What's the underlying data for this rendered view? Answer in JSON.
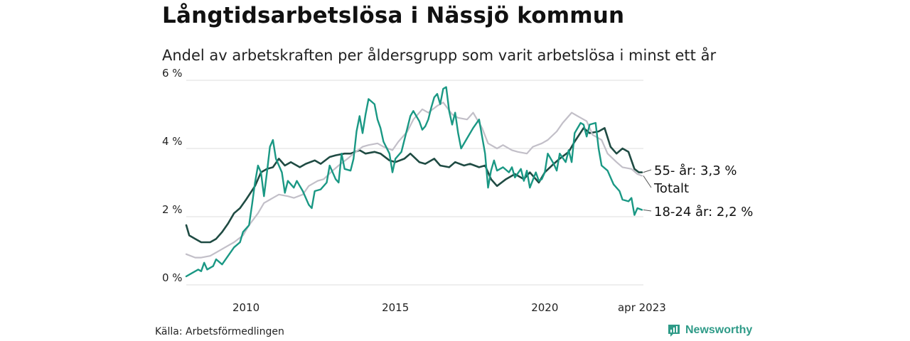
{
  "header": {
    "title": "Långtidsarbetslösa i Nässjö kommun",
    "subtitle": "Andel av arbetskraften per åldersgrupp som varit arbetslösa i minst ett år"
  },
  "footer": {
    "source": "Källa: Arbetsförmedlingen",
    "brand": "Newsworthy"
  },
  "colors": {
    "youth": "#1a9884",
    "senior": "#1f4b43",
    "total": "#c2bfc8",
    "grid": "#dddddd",
    "brand": "#2f9b88"
  },
  "chart_data": {
    "type": "line",
    "ylim": [
      0,
      6
    ],
    "y_ticks": [
      0,
      2,
      4,
      6
    ],
    "y_tick_labels": [
      "0 %",
      "2 %",
      "4 %",
      "6 %"
    ],
    "x_range": [
      2008.0,
      2023.3
    ],
    "x_ticks": [
      2010,
      2015,
      2020,
      2023.25
    ],
    "x_tick_labels": [
      "2010",
      "2015",
      "2020",
      "apr 2023"
    ],
    "grid": true,
    "legend": "direct labels at line ends (right)",
    "series": [
      {
        "name": "55- år",
        "label": "55- år: 3,3 %",
        "color_key": "senior",
        "points": [
          [
            2008.0,
            1.75
          ],
          [
            2008.1,
            1.45
          ],
          [
            2008.3,
            1.35
          ],
          [
            2008.5,
            1.25
          ],
          [
            2008.8,
            1.25
          ],
          [
            2009.0,
            1.35
          ],
          [
            2009.2,
            1.55
          ],
          [
            2009.4,
            1.8
          ],
          [
            2009.6,
            2.1
          ],
          [
            2009.8,
            2.25
          ],
          [
            2010.0,
            2.5
          ],
          [
            2010.3,
            2.9
          ],
          [
            2010.5,
            3.3
          ],
          [
            2010.7,
            3.4
          ],
          [
            2010.9,
            3.45
          ],
          [
            2011.1,
            3.7
          ],
          [
            2011.3,
            3.5
          ],
          [
            2011.5,
            3.6
          ],
          [
            2011.8,
            3.45
          ],
          [
            2012.0,
            3.55
          ],
          [
            2012.3,
            3.65
          ],
          [
            2012.5,
            3.55
          ],
          [
            2012.8,
            3.75
          ],
          [
            2013.0,
            3.8
          ],
          [
            2013.3,
            3.85
          ],
          [
            2013.5,
            3.85
          ],
          [
            2013.8,
            3.95
          ],
          [
            2014.0,
            3.85
          ],
          [
            2014.3,
            3.9
          ],
          [
            2014.5,
            3.85
          ],
          [
            2014.8,
            3.65
          ],
          [
            2015.0,
            3.6
          ],
          [
            2015.3,
            3.7
          ],
          [
            2015.5,
            3.85
          ],
          [
            2015.8,
            3.6
          ],
          [
            2016.0,
            3.55
          ],
          [
            2016.3,
            3.7
          ],
          [
            2016.5,
            3.5
          ],
          [
            2016.8,
            3.45
          ],
          [
            2017.0,
            3.6
          ],
          [
            2017.3,
            3.5
          ],
          [
            2017.5,
            3.55
          ],
          [
            2017.8,
            3.45
          ],
          [
            2018.0,
            3.5
          ],
          [
            2018.2,
            3.1
          ],
          [
            2018.4,
            2.9
          ],
          [
            2018.7,
            3.1
          ],
          [
            2019.0,
            3.25
          ],
          [
            2019.3,
            3.1
          ],
          [
            2019.5,
            3.3
          ],
          [
            2019.8,
            3.0
          ],
          [
            2020.0,
            3.3
          ],
          [
            2020.3,
            3.55
          ],
          [
            2020.5,
            3.7
          ],
          [
            2020.8,
            3.9
          ],
          [
            2021.0,
            4.2
          ],
          [
            2021.3,
            4.6
          ],
          [
            2021.5,
            4.45
          ],
          [
            2021.8,
            4.5
          ],
          [
            2022.0,
            4.6
          ],
          [
            2022.2,
            4.05
          ],
          [
            2022.4,
            3.85
          ],
          [
            2022.6,
            4.0
          ],
          [
            2022.8,
            3.9
          ],
          [
            2023.0,
            3.4
          ],
          [
            2023.15,
            3.3
          ],
          [
            2023.25,
            3.3
          ]
        ]
      },
      {
        "name": "Totalt",
        "label": "Totalt",
        "color_key": "total",
        "points": [
          [
            2008.0,
            0.9
          ],
          [
            2008.3,
            0.8
          ],
          [
            2008.5,
            0.8
          ],
          [
            2008.8,
            0.85
          ],
          [
            2009.0,
            0.95
          ],
          [
            2009.3,
            1.1
          ],
          [
            2009.6,
            1.25
          ],
          [
            2009.9,
            1.45
          ],
          [
            2010.1,
            1.75
          ],
          [
            2010.4,
            2.1
          ],
          [
            2010.6,
            2.4
          ],
          [
            2010.9,
            2.55
          ],
          [
            2011.1,
            2.65
          ],
          [
            2011.4,
            2.6
          ],
          [
            2011.6,
            2.55
          ],
          [
            2011.9,
            2.65
          ],
          [
            2012.1,
            2.9
          ],
          [
            2012.4,
            3.05
          ],
          [
            2012.6,
            3.1
          ],
          [
            2012.9,
            3.35
          ],
          [
            2013.1,
            3.5
          ],
          [
            2013.4,
            3.7
          ],
          [
            2013.6,
            3.85
          ],
          [
            2013.9,
            4.05
          ],
          [
            2014.1,
            4.1
          ],
          [
            2014.4,
            4.15
          ],
          [
            2014.6,
            4.05
          ],
          [
            2014.9,
            3.95
          ],
          [
            2015.1,
            4.2
          ],
          [
            2015.4,
            4.5
          ],
          [
            2015.6,
            4.85
          ],
          [
            2015.9,
            5.15
          ],
          [
            2016.1,
            5.05
          ],
          [
            2016.4,
            5.25
          ],
          [
            2016.6,
            5.35
          ],
          [
            2016.9,
            5.0
          ],
          [
            2017.1,
            4.9
          ],
          [
            2017.4,
            4.85
          ],
          [
            2017.6,
            5.05
          ],
          [
            2017.9,
            4.6
          ],
          [
            2018.1,
            4.15
          ],
          [
            2018.4,
            4.0
          ],
          [
            2018.6,
            4.1
          ],
          [
            2018.9,
            3.95
          ],
          [
            2019.1,
            3.9
          ],
          [
            2019.4,
            3.85
          ],
          [
            2019.6,
            4.05
          ],
          [
            2019.9,
            4.15
          ],
          [
            2020.1,
            4.25
          ],
          [
            2020.4,
            4.5
          ],
          [
            2020.6,
            4.75
          ],
          [
            2020.9,
            5.05
          ],
          [
            2021.1,
            4.95
          ],
          [
            2021.4,
            4.8
          ],
          [
            2021.6,
            4.4
          ],
          [
            2021.9,
            4.25
          ],
          [
            2022.1,
            3.85
          ],
          [
            2022.4,
            3.6
          ],
          [
            2022.6,
            3.45
          ],
          [
            2022.9,
            3.4
          ],
          [
            2023.1,
            3.25
          ],
          [
            2023.25,
            3.2
          ]
        ]
      },
      {
        "name": "18-24 år",
        "label": "18-24 år: 2,2 %",
        "color_key": "youth",
        "points": [
          [
            2008.0,
            0.25
          ],
          [
            2008.2,
            0.35
          ],
          [
            2008.4,
            0.45
          ],
          [
            2008.5,
            0.4
          ],
          [
            2008.6,
            0.65
          ],
          [
            2008.7,
            0.45
          ],
          [
            2008.9,
            0.55
          ],
          [
            2009.0,
            0.75
          ],
          [
            2009.2,
            0.6
          ],
          [
            2009.4,
            0.85
          ],
          [
            2009.6,
            1.1
          ],
          [
            2009.8,
            1.25
          ],
          [
            2009.9,
            1.55
          ],
          [
            2010.1,
            1.75
          ],
          [
            2010.2,
            2.35
          ],
          [
            2010.3,
            3.0
          ],
          [
            2010.4,
            3.5
          ],
          [
            2010.5,
            3.3
          ],
          [
            2010.6,
            2.6
          ],
          [
            2010.7,
            3.3
          ],
          [
            2010.8,
            4.05
          ],
          [
            2010.9,
            4.25
          ],
          [
            2011.0,
            3.7
          ],
          [
            2011.2,
            3.3
          ],
          [
            2011.3,
            2.7
          ],
          [
            2011.4,
            3.05
          ],
          [
            2011.6,
            2.85
          ],
          [
            2011.7,
            3.05
          ],
          [
            2011.9,
            2.75
          ],
          [
            2012.1,
            2.35
          ],
          [
            2012.2,
            2.25
          ],
          [
            2012.3,
            2.75
          ],
          [
            2012.5,
            2.8
          ],
          [
            2012.7,
            3.0
          ],
          [
            2012.8,
            3.5
          ],
          [
            2013.0,
            3.1
          ],
          [
            2013.1,
            3.0
          ],
          [
            2013.2,
            3.85
          ],
          [
            2013.3,
            3.4
          ],
          [
            2013.5,
            3.35
          ],
          [
            2013.6,
            3.7
          ],
          [
            2013.7,
            4.5
          ],
          [
            2013.8,
            4.95
          ],
          [
            2013.9,
            4.45
          ],
          [
            2014.0,
            5.0
          ],
          [
            2014.1,
            5.45
          ],
          [
            2014.3,
            5.3
          ],
          [
            2014.4,
            4.85
          ],
          [
            2014.5,
            4.6
          ],
          [
            2014.6,
            4.2
          ],
          [
            2014.8,
            3.85
          ],
          [
            2014.9,
            3.3
          ],
          [
            2015.0,
            3.7
          ],
          [
            2015.2,
            3.9
          ],
          [
            2015.4,
            4.6
          ],
          [
            2015.5,
            4.95
          ],
          [
            2015.6,
            5.1
          ],
          [
            2015.8,
            4.8
          ],
          [
            2015.9,
            4.55
          ],
          [
            2016.0,
            4.65
          ],
          [
            2016.1,
            4.85
          ],
          [
            2016.2,
            5.2
          ],
          [
            2016.3,
            5.5
          ],
          [
            2016.4,
            5.6
          ],
          [
            2016.5,
            5.3
          ],
          [
            2016.6,
            5.75
          ],
          [
            2016.7,
            5.8
          ],
          [
            2016.8,
            5.1
          ],
          [
            2016.9,
            4.7
          ],
          [
            2017.0,
            5.05
          ],
          [
            2017.1,
            4.45
          ],
          [
            2017.2,
            4.0
          ],
          [
            2017.4,
            4.3
          ],
          [
            2017.6,
            4.6
          ],
          [
            2017.8,
            4.85
          ],
          [
            2017.9,
            4.35
          ],
          [
            2018.0,
            3.85
          ],
          [
            2018.1,
            2.85
          ],
          [
            2018.2,
            3.35
          ],
          [
            2018.3,
            3.65
          ],
          [
            2018.4,
            3.35
          ],
          [
            2018.6,
            3.45
          ],
          [
            2018.8,
            3.3
          ],
          [
            2018.9,
            3.45
          ],
          [
            2019.0,
            3.15
          ],
          [
            2019.2,
            3.4
          ],
          [
            2019.3,
            3.05
          ],
          [
            2019.4,
            3.35
          ],
          [
            2019.5,
            2.85
          ],
          [
            2019.7,
            3.3
          ],
          [
            2019.8,
            3.05
          ],
          [
            2019.9,
            3.1
          ],
          [
            2020.0,
            3.3
          ],
          [
            2020.1,
            3.85
          ],
          [
            2020.3,
            3.55
          ],
          [
            2020.4,
            3.35
          ],
          [
            2020.5,
            3.85
          ],
          [
            2020.7,
            3.6
          ],
          [
            2020.8,
            3.95
          ],
          [
            2020.9,
            3.6
          ],
          [
            2021.0,
            4.45
          ],
          [
            2021.2,
            4.75
          ],
          [
            2021.3,
            4.7
          ],
          [
            2021.4,
            4.35
          ],
          [
            2021.5,
            4.7
          ],
          [
            2021.7,
            4.75
          ],
          [
            2021.8,
            4.0
          ],
          [
            2021.9,
            3.5
          ],
          [
            2022.1,
            3.35
          ],
          [
            2022.3,
            2.95
          ],
          [
            2022.5,
            2.75
          ],
          [
            2022.6,
            2.5
          ],
          [
            2022.8,
            2.45
          ],
          [
            2022.9,
            2.55
          ],
          [
            2023.0,
            2.05
          ],
          [
            2023.1,
            2.25
          ],
          [
            2023.25,
            2.2
          ]
        ]
      }
    ]
  }
}
